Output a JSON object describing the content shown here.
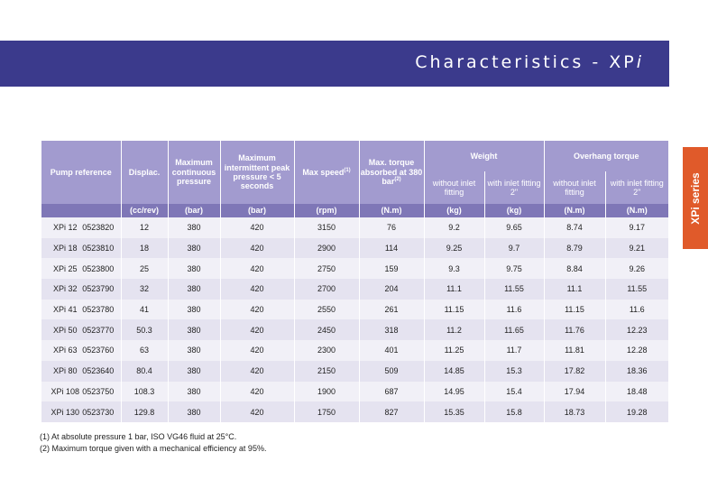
{
  "banner": {
    "title_main": "Characteristics - XP",
    "title_ital": "i"
  },
  "side_tab": {
    "label": "XPi series"
  },
  "table": {
    "headers": {
      "pump": "Pump reference",
      "displ": "Displac.",
      "cont": "Maximum continuous pressure",
      "peak": "Maximum intermittent peak pressure < 5 seconds",
      "speed": "Max speed",
      "speed_note": "(1)",
      "torque": "Max. torque absorbed at 380 bar",
      "torque_note": "(2)",
      "weight": "Weight",
      "overhang": "Overhang torque",
      "without_fit": "without inlet fitting",
      "with_fit": "with inlet fitting 2\""
    },
    "units": [
      "(cc/rev)",
      "(bar)",
      "(bar)",
      "(rpm)",
      "(N.m)",
      "(kg)",
      "(kg)",
      "(N.m)",
      "(N.m)"
    ],
    "rows": [
      {
        "model": "XPi 12",
        "code": "0523820",
        "displ": "12",
        "cont": "380",
        "peak": "420",
        "speed": "3150",
        "torque": "76",
        "w1": "9.2",
        "w2": "9.65",
        "o1": "8.74",
        "o2": "9.17"
      },
      {
        "model": "XPi 18",
        "code": "0523810",
        "displ": "18",
        "cont": "380",
        "peak": "420",
        "speed": "2900",
        "torque": "114",
        "w1": "9.25",
        "w2": "9.7",
        "o1": "8.79",
        "o2": "9.21"
      },
      {
        "model": "XPi 25",
        "code": "0523800",
        "displ": "25",
        "cont": "380",
        "peak": "420",
        "speed": "2750",
        "torque": "159",
        "w1": "9.3",
        "w2": "9.75",
        "o1": "8.84",
        "o2": "9.26"
      },
      {
        "model": "XPi 32",
        "code": "0523790",
        "displ": "32",
        "cont": "380",
        "peak": "420",
        "speed": "2700",
        "torque": "204",
        "w1": "11.1",
        "w2": "11.55",
        "o1": "11.1",
        "o2": "11.55"
      },
      {
        "model": "XPi 41",
        "code": "0523780",
        "displ": "41",
        "cont": "380",
        "peak": "420",
        "speed": "2550",
        "torque": "261",
        "w1": "11.15",
        "w2": "11.6",
        "o1": "11.15",
        "o2": "11.6"
      },
      {
        "model": "XPi 50",
        "code": "0523770",
        "displ": "50.3",
        "cont": "380",
        "peak": "420",
        "speed": "2450",
        "torque": "318",
        "w1": "11.2",
        "w2": "11.65",
        "o1": "11.76",
        "o2": "12.23"
      },
      {
        "model": "XPi 63",
        "code": "0523760",
        "displ": "63",
        "cont": "380",
        "peak": "420",
        "speed": "2300",
        "torque": "401",
        "w1": "11.25",
        "w2": "11.7",
        "o1": "11.81",
        "o2": "12.28"
      },
      {
        "model": "XPi 80",
        "code": "0523640",
        "displ": "80.4",
        "cont": "380",
        "peak": "420",
        "speed": "2150",
        "torque": "509",
        "w1": "14.85",
        "w2": "15.3",
        "o1": "17.82",
        "o2": "18.36"
      },
      {
        "model": "XPi 108",
        "code": "0523750",
        "displ": "108.3",
        "cont": "380",
        "peak": "420",
        "speed": "1900",
        "torque": "687",
        "w1": "14.95",
        "w2": "15.4",
        "o1": "17.94",
        "o2": "18.48"
      },
      {
        "model": "XPi 130",
        "code": "0523730",
        "displ": "129.8",
        "cont": "380",
        "peak": "420",
        "speed": "1750",
        "torque": "827",
        "w1": "15.35",
        "w2": "15.8",
        "o1": "18.73",
        "o2": "19.28"
      }
    ]
  },
  "notes": [
    "(1) At absolute pressure 1 bar, ISO VG46 fluid at 25°C.",
    "(2) Maximum torque given with a mechanical efficiency at 95%."
  ],
  "colors": {
    "banner": "#3b3a8c",
    "header": "#a29bcf",
    "units_row": "#7f77b7",
    "tab": "#e05a2a"
  }
}
